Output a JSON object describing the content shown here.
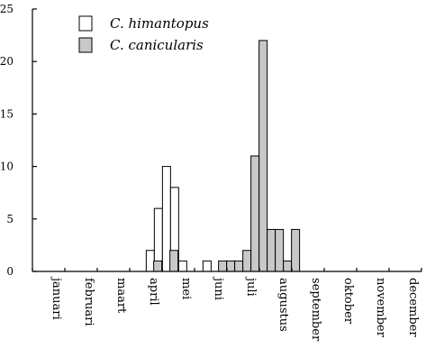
{
  "chart_data": {
    "type": "bar",
    "title": "",
    "xlabel": "",
    "ylabel": "",
    "ylim": [
      0,
      25
    ],
    "yticks": [
      0,
      5,
      10,
      15,
      20,
      25
    ],
    "grid": false,
    "legend_position": "top-left",
    "months": [
      "januari",
      "februari",
      "maart",
      "april",
      "mei",
      "juni",
      "juli",
      "augustus",
      "september",
      "oktober",
      "november",
      "december"
    ],
    "series": [
      {
        "name": "C. himantopus",
        "color": "#ffffff",
        "values": [
          {
            "x": 7.27,
            "y": 2
          },
          {
            "x": 7.77,
            "y": 6
          },
          {
            "x": 8.27,
            "y": 10
          },
          {
            "x": 8.77,
            "y": 8
          },
          {
            "x": 9.27,
            "y": 1
          },
          {
            "x": 10.77,
            "y": 1
          }
        ]
      },
      {
        "name": "C. canicularis",
        "color": "#c8c8c8",
        "values": [
          {
            "x": 7.73,
            "y": 1
          },
          {
            "x": 8.73,
            "y": 2
          },
          {
            "x": 11.73,
            "y": 1
          },
          {
            "x": 12.23,
            "y": 1
          },
          {
            "x": 12.73,
            "y": 1
          },
          {
            "x": 13.23,
            "y": 2
          },
          {
            "x": 13.73,
            "y": 11
          },
          {
            "x": 14.23,
            "y": 22
          },
          {
            "x": 14.73,
            "y": 4
          },
          {
            "x": 15.23,
            "y": 4
          },
          {
            "x": 15.73,
            "y": 1
          },
          {
            "x": 16.23,
            "y": 4
          }
        ]
      }
    ]
  }
}
